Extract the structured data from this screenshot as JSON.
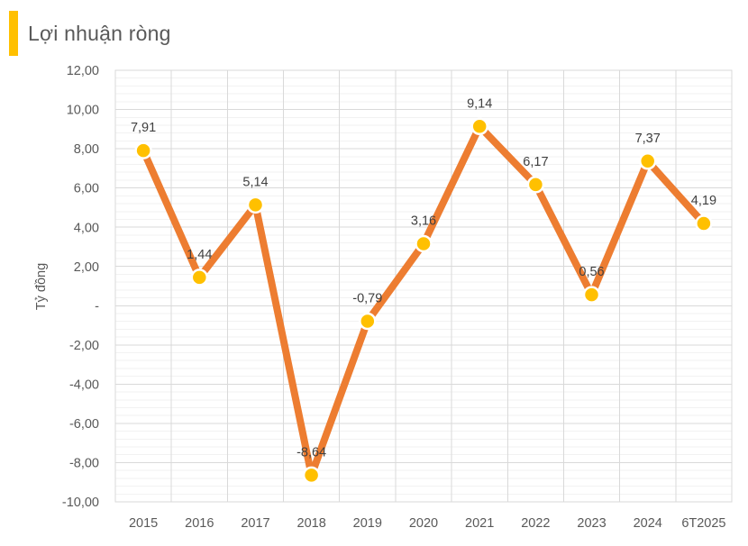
{
  "header": {
    "title": "Lợi nhuận ròng",
    "title_color": "#595959",
    "accent_color": "#FFC000"
  },
  "chart_data": {
    "type": "line",
    "title": "Lợi nhuận ròng",
    "xlabel": "",
    "ylabel": "Tỷ đồng",
    "categories": [
      "2015",
      "2016",
      "2017",
      "2018",
      "2019",
      "2020",
      "2021",
      "2022",
      "2023",
      "2024",
      "6T2025"
    ],
    "values": [
      7.91,
      1.44,
      5.14,
      -8.64,
      -0.79,
      3.16,
      9.14,
      6.17,
      0.56,
      7.37,
      4.19
    ],
    "point_labels": [
      "7,91",
      "1,44",
      "5,14",
      "-8,64",
      "-0,79",
      "3,16",
      "9,14",
      "6,17",
      "0,56",
      "7,37",
      "4,19"
    ],
    "ylim": [
      -10,
      12
    ],
    "y_major_unit": 2,
    "y_minor_unit": 0.4,
    "y_tick_labels": [
      "12,00",
      "10,00",
      "8,00",
      "6,00",
      "4,00",
      "2,00",
      "-",
      "-2,00",
      "-4,00",
      "-6,00",
      "-8,00",
      "-10,00"
    ],
    "grid": true,
    "legend": "none",
    "style": {
      "line_color": "#ED7D31",
      "marker_color": "#FFC000",
      "marker_border_color": "#FFFFFF",
      "major_grid_color": "#D9D9D9",
      "minor_grid_color": "#F2F2F2",
      "axis_text_color": "#595959",
      "data_label_color": "#404040"
    }
  }
}
